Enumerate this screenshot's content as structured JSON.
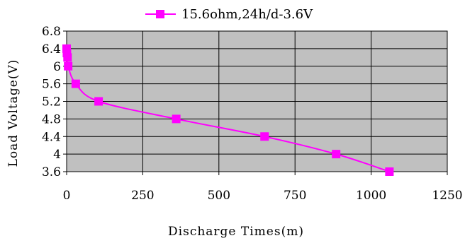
{
  "chart_data": {
    "type": "line",
    "xlabel": "Discharge Times(m)",
    "ylabel": "Load Voltage(V)",
    "xlim": [
      0,
      1250
    ],
    "ylim": [
      3.6,
      6.8
    ],
    "xticks": [
      "0",
      "250",
      "500",
      "750",
      "1000",
      "1250"
    ],
    "yticks": [
      "3.6",
      "4",
      "4.4",
      "4.8",
      "5.2",
      "5.6",
      "6",
      "6.4",
      "6.8"
    ],
    "grid": true,
    "legend_position": "top-center",
    "plot_background": "#c0c0c0",
    "series": [
      {
        "name": "15.6ohm,24h/d-3.6V",
        "color": "#ff00ff",
        "marker": "square",
        "x": [
          0,
          1,
          3,
          5,
          30,
          105,
          360,
          650,
          885,
          1060
        ],
        "y": [
          6.4,
          6.3,
          6.2,
          6.0,
          5.6,
          5.2,
          4.8,
          4.4,
          4.0,
          3.6
        ]
      }
    ]
  }
}
